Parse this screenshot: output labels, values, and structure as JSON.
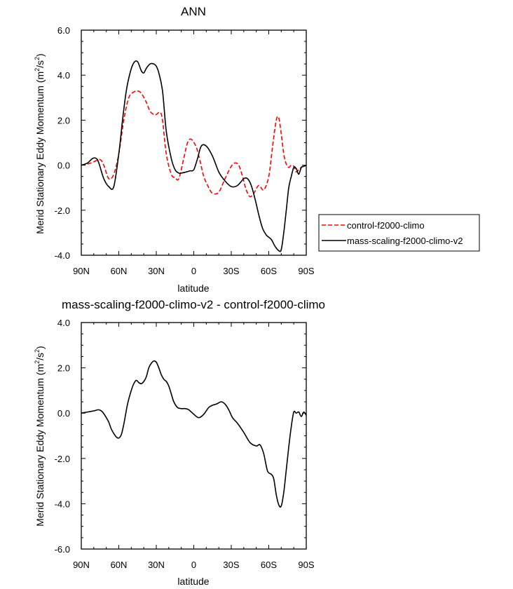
{
  "chart_data": [
    {
      "type": "line",
      "title": "ANN",
      "xlabel": "latitude",
      "ylabel": "Merid Stationary Eddy Momentum (m²/s²)",
      "ylabel_parts": {
        "pre": "Merid Stationary Eddy Momentum (m",
        "sup1": "2",
        "mid": "/s",
        "sup2": "2",
        "post": ")"
      },
      "xlim": [
        90,
        -90
      ],
      "ylim": [
        -4,
        6
      ],
      "yticks": [
        -4,
        -2,
        0,
        2,
        4,
        6
      ],
      "ytick_labels": [
        "-4.0",
        "-2.0",
        "0.0",
        "2.0",
        "4.0",
        "6.0"
      ],
      "xticks": [
        90,
        60,
        30,
        0,
        -30,
        -60,
        -90
      ],
      "xtick_labels": [
        "90N",
        "60N",
        "30N",
        "0",
        "30S",
        "60S",
        "90S"
      ],
      "legend": {
        "position": "outside-right",
        "entries": [
          "control-f2000-climo",
          "mass-scaling-f2000-climo-v2"
        ]
      },
      "series": [
        {
          "name": "control-f2000-climo",
          "color": "#ff0000",
          "dash": "dashed",
          "x": [
            90,
            85,
            80,
            75,
            72,
            68,
            64,
            60,
            56,
            52,
            48,
            45,
            42,
            38,
            35,
            32,
            30,
            27,
            25,
            22,
            18,
            15,
            12,
            8,
            5,
            2,
            -2,
            -5,
            -8,
            -12,
            -15,
            -20,
            -25,
            -30,
            -33,
            -36,
            -39,
            -42,
            -45,
            -48,
            -52,
            -56,
            -60,
            -63,
            -66,
            -68,
            -70,
            -72,
            -74,
            -76,
            -78,
            -80,
            -82,
            -84,
            -86,
            -88,
            -90
          ],
          "y": [
            0,
            0.05,
            0.15,
            0.25,
            0,
            -0.6,
            -0.4,
            0.5,
            2.0,
            3.0,
            3.25,
            3.3,
            3.2,
            2.8,
            2.4,
            2.25,
            2.25,
            2.35,
            2.0,
            0.5,
            -0.4,
            -0.55,
            -0.6,
            0.3,
            1.0,
            1.15,
            0.8,
            0.2,
            -0.5,
            -1.0,
            -1.25,
            -1.2,
            -0.6,
            -0.05,
            0.1,
            0.0,
            -0.5,
            -1.1,
            -1.4,
            -1.25,
            -0.9,
            -1.1,
            -0.5,
            0.8,
            2.0,
            2.1,
            1.4,
            0.5,
            0.05,
            -0.1,
            0.0,
            -0.05,
            -0.3,
            -0.2,
            -0.1,
            -0.05,
            0.0
          ]
        },
        {
          "name": "mass-scaling-f2000-climo-v2",
          "color": "#000000",
          "dash": "solid",
          "x": [
            90,
            85,
            81,
            78,
            76,
            72,
            68,
            64,
            60,
            57,
            54,
            51,
            48,
            45,
            42,
            40,
            38,
            35,
            32,
            30,
            28,
            25,
            22,
            18,
            15,
            12,
            10,
            6,
            3,
            0,
            -3,
            -6,
            -10,
            -15,
            -20,
            -25,
            -30,
            -35,
            -40,
            -43,
            -46,
            -49,
            -52,
            -55,
            -58,
            -62,
            -65,
            -68,
            -70,
            -72,
            -74,
            -76,
            -78,
            -80,
            -82,
            -84,
            -86,
            -88,
            -90
          ],
          "y": [
            0,
            0.1,
            0.3,
            0.3,
            0.1,
            -0.6,
            -0.95,
            -0.95,
            0.5,
            2.0,
            3.3,
            4.1,
            4.55,
            4.6,
            4.2,
            4.1,
            4.3,
            4.5,
            4.5,
            4.4,
            4.1,
            3.3,
            1.5,
            0.3,
            -0.2,
            -0.35,
            -0.35,
            -0.3,
            -0.25,
            -0.2,
            0.3,
            0.85,
            0.85,
            0.4,
            -0.3,
            -0.7,
            -0.95,
            -0.9,
            -0.6,
            -0.6,
            -0.9,
            -1.5,
            -2.2,
            -2.8,
            -3.1,
            -3.3,
            -3.6,
            -3.8,
            -3.75,
            -3.0,
            -2.0,
            -1.0,
            -0.5,
            -0.1,
            -0.15,
            -0.4,
            -0.1,
            -0.05,
            0.0
          ]
        }
      ]
    },
    {
      "type": "line",
      "title": "mass-scaling-f2000-climo-v2 - control-f2000-climo",
      "xlabel": "latitude",
      "ylabel": "Merid Stationary Eddy Momentum (m²/s²)",
      "ylabel_parts": {
        "pre": "Merid Stationary Eddy Momentum (m",
        "sup1": "2",
        "mid": "/s",
        "sup2": "2",
        "post": ")"
      },
      "xlim": [
        90,
        -90
      ],
      "ylim": [
        -6,
        4
      ],
      "yticks": [
        -6,
        -4,
        -2,
        0,
        2,
        4
      ],
      "ytick_labels": [
        "-6.0",
        "-4.0",
        "-2.0",
        "0.0",
        "2.0",
        "4.0"
      ],
      "xticks": [
        90,
        60,
        30,
        0,
        -30,
        -60,
        -90
      ],
      "xtick_labels": [
        "90N",
        "60N",
        "30N",
        "0",
        "30S",
        "60S",
        "90S"
      ],
      "series": [
        {
          "color": "#000000",
          "dash": "solid",
          "x": [
            90,
            85,
            80,
            76,
            73,
            70,
            68,
            66,
            64,
            62,
            60,
            58,
            56,
            53,
            50,
            48,
            46,
            44,
            42,
            40,
            38,
            36,
            34,
            32,
            30,
            28,
            26,
            24,
            22,
            20,
            18,
            16,
            13,
            10,
            7,
            4,
            0,
            -4,
            -8,
            -12,
            -15,
            -18,
            -22,
            -25,
            -28,
            -31,
            -35,
            -40,
            -45,
            -50,
            -53,
            -56,
            -59,
            -62,
            -64,
            -66,
            -68,
            -70,
            -72,
            -74,
            -76,
            -78,
            -80,
            -82,
            -84,
            -86,
            -88,
            -90
          ],
          "y": [
            0,
            0.05,
            0.1,
            0.15,
            0.05,
            -0.2,
            -0.4,
            -0.7,
            -0.9,
            -1.05,
            -1.1,
            -0.95,
            -0.5,
            0.4,
            1.0,
            1.3,
            1.45,
            1.35,
            1.3,
            1.4,
            1.6,
            2.0,
            2.2,
            2.3,
            2.25,
            2.0,
            1.7,
            1.5,
            1.4,
            1.2,
            0.85,
            0.5,
            0.25,
            0.2,
            0.2,
            0.15,
            -0.05,
            -0.2,
            -0.05,
            0.25,
            0.35,
            0.4,
            0.5,
            0.4,
            0.15,
            -0.2,
            -0.45,
            -0.85,
            -1.3,
            -1.45,
            -1.4,
            -1.8,
            -2.55,
            -2.7,
            -2.9,
            -3.6,
            -4.05,
            -4.1,
            -3.5,
            -2.5,
            -1.5,
            -0.6,
            0.05,
            0.0,
            0.05,
            -0.15,
            0.05,
            -0.1
          ]
        }
      ]
    }
  ]
}
